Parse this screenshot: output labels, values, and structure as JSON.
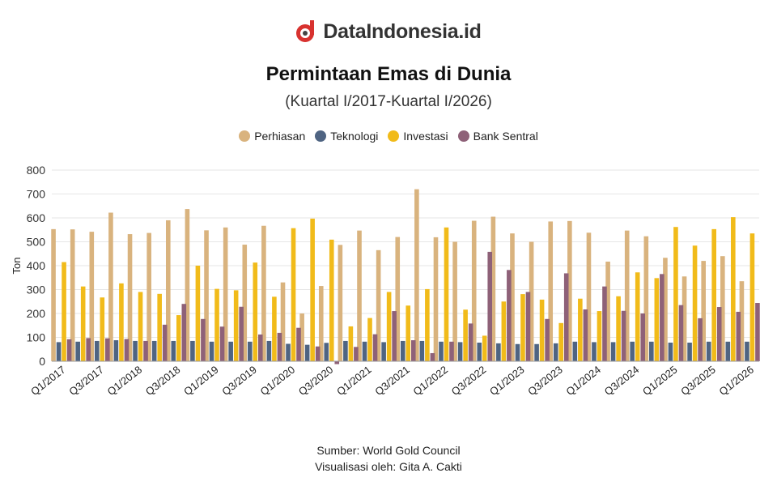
{
  "brand": {
    "name": "DataIndonesia.id",
    "logo_icon": "dataindonesia-logo-icon"
  },
  "chart_data": {
    "type": "bar",
    "title": "Permintaan Emas di Dunia",
    "subtitle": "(Kuartal I/2017-Kuartal I/2026)",
    "ylabel": "Ton",
    "xlabel": "",
    "ylim": [
      0,
      800
    ],
    "yticks": [
      0,
      100,
      200,
      300,
      400,
      500,
      600,
      700,
      800
    ],
    "grid": true,
    "legend_position": "top-center",
    "categories": [
      "Q1/2017",
      "Q2/2017",
      "Q3/2017",
      "Q4/2017",
      "Q1/2018",
      "Q2/2018",
      "Q3/2018",
      "Q4/2018",
      "Q1/2019",
      "Q2/2019",
      "Q3/2019",
      "Q4/2019",
      "Q1/2020",
      "Q2/2020",
      "Q3/2020",
      "Q4/2020",
      "Q1/2021",
      "Q2/2021",
      "Q3/2021",
      "Q4/2021",
      "Q1/2022",
      "Q2/2022",
      "Q3/2022",
      "Q4/2022",
      "Q1/2023",
      "Q2/2023",
      "Q3/2023",
      "Q4/2023",
      "Q1/2024",
      "Q2/2024",
      "Q3/2024",
      "Q4/2024",
      "Q1/2025",
      "Q2/2025",
      "Q3/2025",
      "Q4/2025",
      "Q1/2026"
    ],
    "tick_labels": [
      "Q1/2017",
      "Q3/2017",
      "Q1/2018",
      "Q3/2018",
      "Q1/2019",
      "Q3/2019",
      "Q1/2020",
      "Q3/2020",
      "Q1/2021",
      "Q3/2021",
      "Q1/2022",
      "Q3/2022",
      "Q1/2023",
      "Q3/2023",
      "Q1/2024",
      "Q3/2024",
      "Q1/2025",
      "Q3/2025",
      "Q1/2026"
    ],
    "series": [
      {
        "name": "Perhiasan",
        "color": "#D9B37E",
        "values": [
          553,
          552,
          542,
          622,
          532,
          537,
          590,
          637,
          548,
          560,
          488,
          567,
          330,
          200,
          315,
          487,
          547,
          465,
          520,
          720,
          519,
          500,
          588,
          605,
          535,
          500,
          585,
          587,
          538,
          417,
          547,
          523,
          433,
          355,
          420,
          440,
          335
        ]
      },
      {
        "name": "Teknologi",
        "color": "#4F6482",
        "values": [
          80,
          82,
          85,
          88,
          85,
          85,
          85,
          85,
          82,
          82,
          82,
          85,
          73,
          69,
          77,
          85,
          82,
          80,
          85,
          85,
          82,
          80,
          78,
          75,
          72,
          72,
          75,
          82,
          80,
          80,
          82,
          82,
          78,
          78,
          82,
          82,
          82
        ]
      },
      {
        "name": "Investasi",
        "color": "#F1BB1A",
        "values": [
          415,
          313,
          267,
          326,
          290,
          282,
          193,
          400,
          303,
          297,
          413,
          270,
          557,
          597,
          509,
          146,
          181,
          290,
          233,
          302,
          560,
          216,
          107,
          250,
          281,
          258,
          160,
          262,
          210,
          272,
          372,
          348,
          562,
          484,
          553,
          603,
          535
        ]
      },
      {
        "name": "Bank Sentral",
        "color": "#8E6178",
        "values": [
          92,
          97,
          96,
          93,
          85,
          153,
          240,
          177,
          145,
          228,
          112,
          119,
          140,
          62,
          -12,
          60,
          113,
          210,
          88,
          34,
          82,
          158,
          458,
          382,
          290,
          177,
          368,
          217,
          313,
          211,
          200,
          365,
          235,
          180,
          227,
          207,
          244
        ]
      }
    ]
  },
  "footer": {
    "source": "Sumber: World Gold Council",
    "visualization": "Visualisasi oleh: Gita A. Cakti"
  }
}
